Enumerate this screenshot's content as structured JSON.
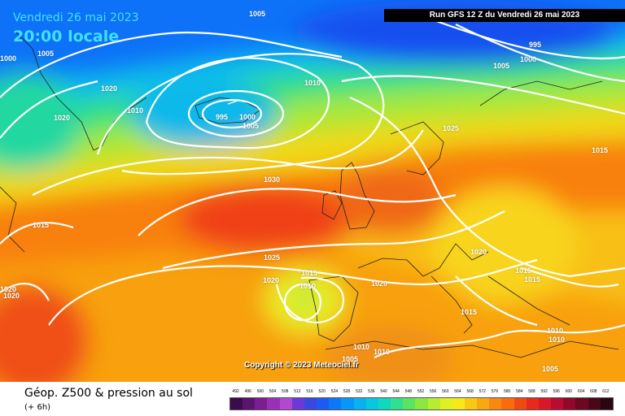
{
  "header": {
    "date": "Vendredi 26 mai 2023",
    "local_time": "20:00 locale",
    "run": "Run GFS 12 Z du Vendredi 26 mai 2023"
  },
  "copyright": "Copyright © 2023 Meteociel.fr",
  "isobar_labels": [
    "1005",
    "1000",
    "1005",
    "1020",
    "1010",
    "1010",
    "1020",
    "995",
    "1000",
    "1005",
    "995",
    "1005",
    "1000",
    "1025",
    "1015",
    "1030",
    "1015",
    "1025",
    "1020",
    "1015",
    "1010",
    "1020",
    "1020",
    "1015",
    "1015",
    "1015",
    "1010",
    "1010",
    "1010",
    "1005",
    "1010",
    "1005",
    "1020",
    "1020"
  ],
  "legend": {
    "title": "Géop. Z500 & pression au sol",
    "subtitle": "(+ 6h)",
    "scale_values": [
      "492",
      "496",
      "500",
      "504",
      "508",
      "512",
      "516",
      "520",
      "524",
      "528",
      "532",
      "536",
      "540",
      "544",
      "548",
      "552",
      "556",
      "560",
      "564",
      "568",
      "572",
      "576",
      "580",
      "584",
      "588",
      "592",
      "596",
      "600",
      "604",
      "608",
      "612"
    ],
    "scale_colors": [
      "#3b0b4e",
      "#5a1470",
      "#7a1e92",
      "#9a30b8",
      "#b048d0",
      "#6a3ad8",
      "#3a48e0",
      "#1a5cf0",
      "#0c78f8",
      "#0896f8",
      "#06b2f0",
      "#06c8e0",
      "#10d8c0",
      "#30e090",
      "#5ae460",
      "#8ae840",
      "#b8ec30",
      "#e0f020",
      "#f8e818",
      "#f8c814",
      "#f8a810",
      "#f88810",
      "#f86c10",
      "#f04a14",
      "#e82a1c",
      "#d81828",
      "#b80c30",
      "#920828",
      "#6c0820",
      "#48081a",
      "#2a0612"
    ]
  }
}
